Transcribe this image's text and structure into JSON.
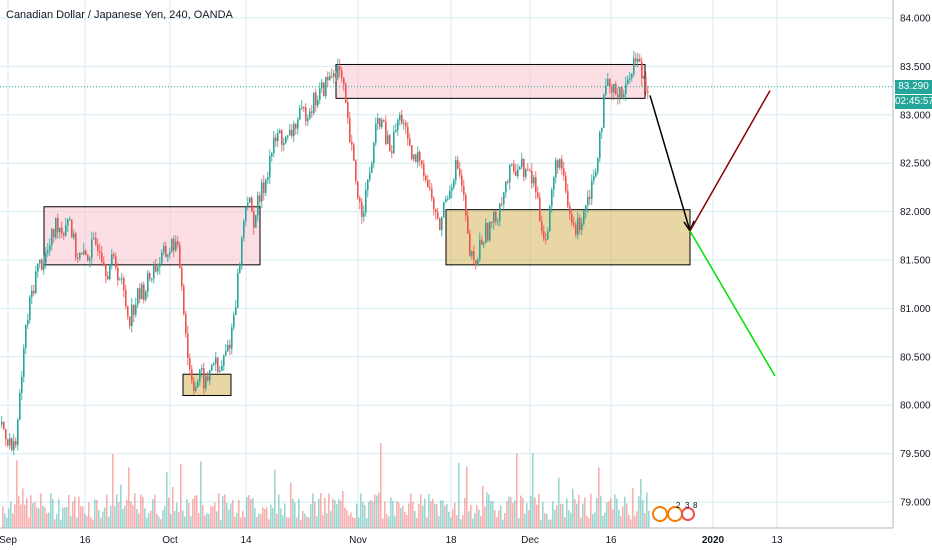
{
  "chart_data": {
    "type": "candlestick",
    "title": "Canadian Dollar / Japanese Yen, 240, OANDA",
    "y_axis": {
      "ticks": [
        "84.000",
        "83.500",
        "83.000",
        "82.500",
        "82.000",
        "81.500",
        "81.000",
        "80.500",
        "80.000",
        "79.500",
        "79.000"
      ],
      "range": [
        78.75,
        84.2
      ],
      "position": "right"
    },
    "x_axis": {
      "ticks": [
        "Sep",
        "16",
        "Oct",
        "14",
        "Nov",
        "18",
        "Dec",
        "16",
        "2020",
        "13"
      ],
      "bold_ticks": [
        "2020"
      ]
    },
    "last_price": "83.290",
    "countdown": "02:45:57",
    "last_price_color": "#26a69a",
    "up_color": "#26a69a",
    "down_color": "#ef5350",
    "price_path": [
      {
        "t": 0,
        "p": 79.8
      },
      {
        "t": 6,
        "p": 79.7
      },
      {
        "t": 12,
        "p": 79.5
      },
      {
        "t": 18,
        "p": 79.9
      },
      {
        "t": 24,
        "p": 80.7
      },
      {
        "t": 30,
        "p": 81.1
      },
      {
        "t": 36,
        "p": 81.4
      },
      {
        "t": 42,
        "p": 81.5
      },
      {
        "t": 48,
        "p": 81.6
      },
      {
        "t": 56,
        "p": 81.9
      },
      {
        "t": 62,
        "p": 81.8
      },
      {
        "t": 68,
        "p": 82.0
      },
      {
        "t": 74,
        "p": 81.6
      },
      {
        "t": 82,
        "p": 81.5
      },
      {
        "t": 90,
        "p": 81.6
      },
      {
        "t": 98,
        "p": 81.7
      },
      {
        "t": 106,
        "p": 81.4
      },
      {
        "t": 114,
        "p": 81.5
      },
      {
        "t": 122,
        "p": 81.2
      },
      {
        "t": 128,
        "p": 80.9
      },
      {
        "t": 136,
        "p": 81.1
      },
      {
        "t": 144,
        "p": 81.2
      },
      {
        "t": 152,
        "p": 81.4
      },
      {
        "t": 160,
        "p": 81.5
      },
      {
        "t": 168,
        "p": 81.6
      },
      {
        "t": 174,
        "p": 81.7
      },
      {
        "t": 180,
        "p": 81.4
      },
      {
        "t": 184,
        "p": 80.9
      },
      {
        "t": 188,
        "p": 80.4
      },
      {
        "t": 194,
        "p": 80.2
      },
      {
        "t": 200,
        "p": 80.3
      },
      {
        "t": 206,
        "p": 80.2
      },
      {
        "t": 212,
        "p": 80.5
      },
      {
        "t": 218,
        "p": 80.3
      },
      {
        "t": 224,
        "p": 80.5
      },
      {
        "t": 230,
        "p": 80.7
      },
      {
        "t": 236,
        "p": 81.2
      },
      {
        "t": 240,
        "p": 81.6
      },
      {
        "t": 246,
        "p": 82.2
      },
      {
        "t": 252,
        "p": 81.9
      },
      {
        "t": 258,
        "p": 82.1
      },
      {
        "t": 264,
        "p": 82.3
      },
      {
        "t": 270,
        "p": 82.6
      },
      {
        "t": 278,
        "p": 82.8
      },
      {
        "t": 286,
        "p": 82.7
      },
      {
        "t": 294,
        "p": 82.9
      },
      {
        "t": 302,
        "p": 83.0
      },
      {
        "t": 310,
        "p": 83.1
      },
      {
        "t": 318,
        "p": 83.2
      },
      {
        "t": 324,
        "p": 83.3
      },
      {
        "t": 330,
        "p": 83.4
      },
      {
        "t": 336,
        "p": 83.5
      },
      {
        "t": 342,
        "p": 83.3
      },
      {
        "t": 348,
        "p": 82.8
      },
      {
        "t": 354,
        "p": 82.4
      },
      {
        "t": 360,
        "p": 82.0
      },
      {
        "t": 366,
        "p": 82.2
      },
      {
        "t": 372,
        "p": 82.6
      },
      {
        "t": 378,
        "p": 83.0
      },
      {
        "t": 384,
        "p": 82.8
      },
      {
        "t": 390,
        "p": 82.6
      },
      {
        "t": 396,
        "p": 82.9
      },
      {
        "t": 402,
        "p": 83.0
      },
      {
        "t": 408,
        "p": 82.6
      },
      {
        "t": 414,
        "p": 82.5
      },
      {
        "t": 420,
        "p": 82.6
      },
      {
        "t": 426,
        "p": 82.3
      },
      {
        "t": 432,
        "p": 82.1
      },
      {
        "t": 438,
        "p": 81.8
      },
      {
        "t": 444,
        "p": 82.1
      },
      {
        "t": 450,
        "p": 82.3
      },
      {
        "t": 456,
        "p": 82.5
      },
      {
        "t": 462,
        "p": 82.2
      },
      {
        "t": 468,
        "p": 81.6
      },
      {
        "t": 474,
        "p": 81.4
      },
      {
        "t": 480,
        "p": 81.7
      },
      {
        "t": 486,
        "p": 81.8
      },
      {
        "t": 494,
        "p": 81.9
      },
      {
        "t": 502,
        "p": 82.2
      },
      {
        "t": 510,
        "p": 82.4
      },
      {
        "t": 518,
        "p": 82.5
      },
      {
        "t": 526,
        "p": 82.4
      },
      {
        "t": 534,
        "p": 82.3
      },
      {
        "t": 540,
        "p": 81.9
      },
      {
        "t": 546,
        "p": 81.7
      },
      {
        "t": 552,
        "p": 82.3
      },
      {
        "t": 558,
        "p": 82.6
      },
      {
        "t": 564,
        "p": 82.2
      },
      {
        "t": 570,
        "p": 81.9
      },
      {
        "t": 576,
        "p": 81.8
      },
      {
        "t": 582,
        "p": 82.0
      },
      {
        "t": 588,
        "p": 82.2
      },
      {
        "t": 594,
        "p": 82.4
      },
      {
        "t": 600,
        "p": 82.9
      },
      {
        "t": 606,
        "p": 83.3
      },
      {
        "t": 612,
        "p": 83.2
      },
      {
        "t": 618,
        "p": 83.3
      },
      {
        "t": 624,
        "p": 83.2
      },
      {
        "t": 630,
        "p": 83.5
      },
      {
        "t": 636,
        "p": 83.6
      },
      {
        "t": 642,
        "p": 83.4
      },
      {
        "t": 648,
        "p": 83.3
      }
    ],
    "zones": [
      {
        "type": "resistance",
        "t0": 44,
        "t1": 260,
        "p0": 81.45,
        "p1": 82.05
      },
      {
        "type": "resistance",
        "t0": 336,
        "t1": 645,
        "p0": 83.17,
        "p1": 83.52
      },
      {
        "type": "support",
        "t0": 183,
        "t1": 231,
        "p0": 80.1,
        "p1": 80.32
      },
      {
        "type": "support",
        "t0": 446,
        "t1": 690,
        "p0": 81.45,
        "p1": 82.02
      }
    ],
    "projections": [
      {
        "color": "#000000",
        "from": {
          "t": 650,
          "p": 83.2
        },
        "to": {
          "t": 690,
          "p": 81.8
        },
        "arrow": true
      },
      {
        "color": "#8b0000",
        "from": {
          "t": 690,
          "p": 81.8
        },
        "to": {
          "t": 770,
          "p": 83.25
        }
      },
      {
        "color": "#00e000",
        "from": {
          "t": 690,
          "p": 81.8
        },
        "to": {
          "t": 775,
          "p": 80.3
        }
      }
    ],
    "grid": true,
    "legend": "none"
  },
  "watermark": {
    "numbers": [
      "2",
      "3",
      "8"
    ]
  }
}
